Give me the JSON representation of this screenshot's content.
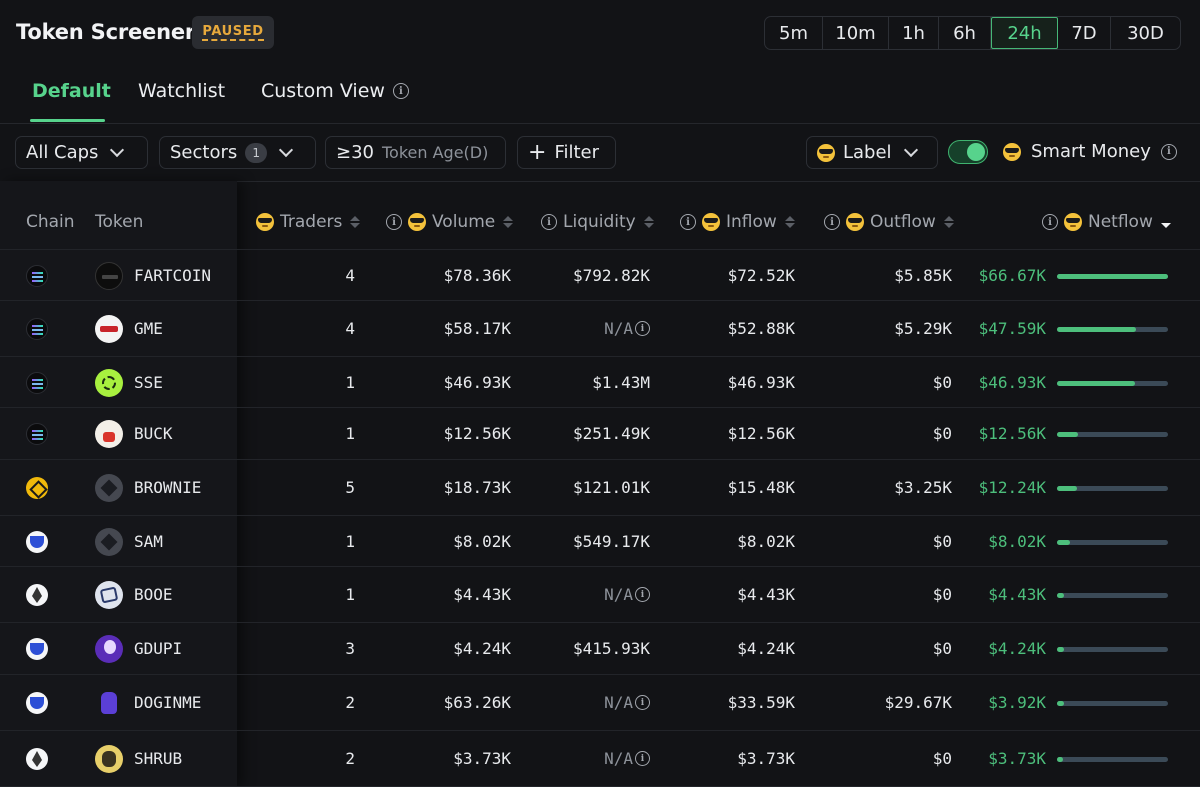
{
  "header": {
    "title": "Token Screener",
    "status_badge": "PAUSED",
    "timeframes": [
      "5m",
      "10m",
      "1h",
      "6h",
      "24h",
      "7D",
      "30D"
    ],
    "active_timeframe": "24h"
  },
  "tabs": {
    "default": "Default",
    "watchlist": "Watchlist",
    "custom_view": "Custom View"
  },
  "filters": {
    "caps": "All Caps",
    "sectors": "Sectors",
    "sectors_count": "1",
    "token_age_value": "≥30",
    "token_age_label": "Token Age(D)",
    "add_filter": "Filter",
    "label": "Label",
    "smart_money": "Smart Money",
    "smart_money_enabled": true
  },
  "table": {
    "headers": {
      "chain": "Chain",
      "token": "Token",
      "traders": "Traders",
      "volume": "Volume",
      "liquidity": "Liquidity",
      "inflow": "Inflow",
      "outflow": "Outflow",
      "netflow": "Netflow"
    },
    "sorted_by": "Netflow",
    "rows": [
      {
        "chain": "solana",
        "token": "FARTCOIN",
        "icon": "fartcoin-icon",
        "traders": "4",
        "volume": "$78.36K",
        "liquidity": "$792.82K",
        "inflow": "$72.52K",
        "outflow": "$5.85K",
        "netflow": "$66.67K",
        "netflow_ratio": 1.0
      },
      {
        "chain": "solana",
        "token": "GME",
        "icon": "gme-icon",
        "traders": "4",
        "volume": "$58.17K",
        "liquidity": "N/A",
        "inflow": "$52.88K",
        "outflow": "$5.29K",
        "netflow": "$47.59K",
        "netflow_ratio": 0.714
      },
      {
        "chain": "solana",
        "token": "SSE",
        "icon": "sse-icon",
        "traders": "1",
        "volume": "$46.93K",
        "liquidity": "$1.43M",
        "inflow": "$46.93K",
        "outflow": "$0",
        "netflow": "$46.93K",
        "netflow_ratio": 0.704
      },
      {
        "chain": "solana",
        "token": "BUCK",
        "icon": "buck-icon",
        "traders": "1",
        "volume": "$12.56K",
        "liquidity": "$251.49K",
        "inflow": "$12.56K",
        "outflow": "$0",
        "netflow": "$12.56K",
        "netflow_ratio": 0.188
      },
      {
        "chain": "bnb",
        "token": "BROWNIE",
        "icon": "brownie-icon",
        "traders": "5",
        "volume": "$18.73K",
        "liquidity": "$121.01K",
        "inflow": "$15.48K",
        "outflow": "$3.25K",
        "netflow": "$12.24K",
        "netflow_ratio": 0.184
      },
      {
        "chain": "base",
        "token": "SAM",
        "icon": "sam-icon",
        "traders": "1",
        "volume": "$8.02K",
        "liquidity": "$549.17K",
        "inflow": "$8.02K",
        "outflow": "$0",
        "netflow": "$8.02K",
        "netflow_ratio": 0.12
      },
      {
        "chain": "ethereum",
        "token": "BOOE",
        "icon": "booe-icon",
        "traders": "1",
        "volume": "$4.43K",
        "liquidity": "N/A",
        "inflow": "$4.43K",
        "outflow": "$0",
        "netflow": "$4.43K",
        "netflow_ratio": 0.066
      },
      {
        "chain": "base",
        "token": "GDUPI",
        "icon": "gdupi-icon",
        "traders": "3",
        "volume": "$4.24K",
        "liquidity": "$415.93K",
        "inflow": "$4.24K",
        "outflow": "$0",
        "netflow": "$4.24K",
        "netflow_ratio": 0.064
      },
      {
        "chain": "base",
        "token": "DOGINME",
        "icon": "doginme-icon",
        "traders": "2",
        "volume": "$63.26K",
        "liquidity": "N/A",
        "inflow": "$33.59K",
        "outflow": "$29.67K",
        "netflow": "$3.92K",
        "netflow_ratio": 0.059
      },
      {
        "chain": "ethereum",
        "token": "SHRUB",
        "icon": "shrub-icon",
        "traders": "2",
        "volume": "$3.73K",
        "liquidity": "N/A",
        "inflow": "$3.73K",
        "outflow": "$0",
        "netflow": "$3.73K",
        "netflow_ratio": 0.056
      }
    ]
  },
  "colors": {
    "accent": "#57d38c",
    "paused": "#e7a93c",
    "netflow_positive": "#4dbf7c",
    "background": "#121316"
  }
}
